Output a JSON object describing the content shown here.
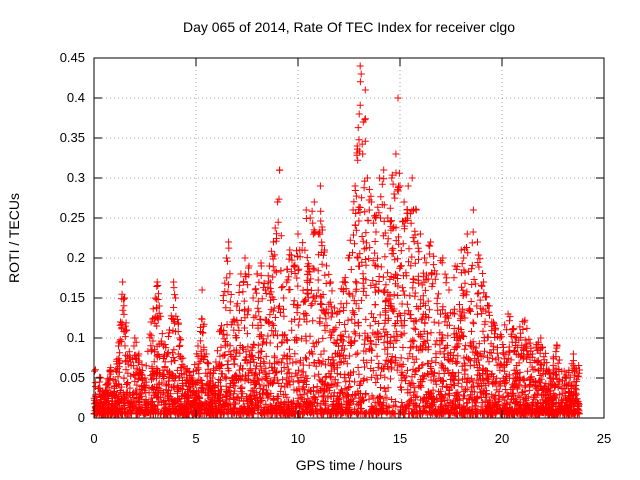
{
  "chart_data": {
    "type": "scatter",
    "title": "Day 065 of 2014, Rate Of TEC Index for receiver clgo",
    "xlabel": "GPS time / hours",
    "ylabel": "ROTI / TECUs",
    "xlim": [
      0,
      25
    ],
    "ylim": [
      0,
      0.45
    ],
    "xticks": [
      0,
      5,
      10,
      15,
      20,
      25
    ],
    "xtick_labels": [
      "0",
      "5",
      "10",
      "15",
      "20",
      "25"
    ],
    "yticks": [
      0,
      0.05,
      0.1,
      0.15,
      0.2,
      0.25,
      0.3,
      0.35,
      0.4,
      0.45
    ],
    "ytick_labels": [
      "0",
      "0.05",
      "0.1",
      "0.15",
      "0.2",
      "0.25",
      "0.3",
      "0.35",
      "0.4",
      "0.45"
    ],
    "grid": true,
    "marker": "+",
    "color": "#ff0000",
    "series": [
      {
        "name": "ROTI",
        "points": [
          [
            0.1,
            0.02
          ],
          [
            0.3,
            0.05
          ],
          [
            0.5,
            0.03
          ],
          [
            0.8,
            0.06
          ],
          [
            1.0,
            0.04
          ],
          [
            1.2,
            0.09
          ],
          [
            1.3,
            0.12
          ],
          [
            1.4,
            0.17
          ],
          [
            1.5,
            0.15
          ],
          [
            1.6,
            0.11
          ],
          [
            1.8,
            0.07
          ],
          [
            2.0,
            0.1
          ],
          [
            2.2,
            0.08
          ],
          [
            2.5,
            0.05
          ],
          [
            2.8,
            0.12
          ],
          [
            3.0,
            0.15
          ],
          [
            3.1,
            0.17
          ],
          [
            3.2,
            0.14
          ],
          [
            3.4,
            0.09
          ],
          [
            3.7,
            0.11
          ],
          [
            3.9,
            0.17
          ],
          [
            4.0,
            0.15
          ],
          [
            4.2,
            0.1
          ],
          [
            4.5,
            0.06
          ],
          [
            4.8,
            0.05
          ],
          [
            5.1,
            0.09
          ],
          [
            5.3,
            0.16
          ],
          [
            5.5,
            0.08
          ],
          [
            5.8,
            0.05
          ],
          [
            6.2,
            0.11
          ],
          [
            6.5,
            0.2
          ],
          [
            6.6,
            0.22
          ],
          [
            6.8,
            0.12
          ],
          [
            7.0,
            0.14
          ],
          [
            7.2,
            0.18
          ],
          [
            7.4,
            0.2
          ],
          [
            7.6,
            0.19
          ],
          [
            7.8,
            0.15
          ],
          [
            8.0,
            0.18
          ],
          [
            8.2,
            0.19
          ],
          [
            8.4,
            0.16
          ],
          [
            8.6,
            0.19
          ],
          [
            8.8,
            0.22
          ],
          [
            9.0,
            0.27
          ],
          [
            9.1,
            0.31
          ],
          [
            9.3,
            0.15
          ],
          [
            9.6,
            0.21
          ],
          [
            9.8,
            0.19
          ],
          [
            10.0,
            0.23
          ],
          [
            10.2,
            0.21
          ],
          [
            10.4,
            0.26
          ],
          [
            10.6,
            0.25
          ],
          [
            10.8,
            0.27
          ],
          [
            11.0,
            0.23
          ],
          [
            11.1,
            0.29
          ],
          [
            11.3,
            0.21
          ],
          [
            11.6,
            0.17
          ],
          [
            11.9,
            0.13
          ],
          [
            12.2,
            0.17
          ],
          [
            12.5,
            0.2
          ],
          [
            12.7,
            0.26
          ],
          [
            12.8,
            0.29
          ],
          [
            12.9,
            0.34
          ],
          [
            13.0,
            0.38
          ],
          [
            13.05,
            0.44
          ],
          [
            13.1,
            0.43
          ],
          [
            13.2,
            0.37
          ],
          [
            13.3,
            0.41
          ],
          [
            13.4,
            0.3
          ],
          [
            13.6,
            0.27
          ],
          [
            13.8,
            0.25
          ],
          [
            14.0,
            0.3
          ],
          [
            14.2,
            0.31
          ],
          [
            14.4,
            0.25
          ],
          [
            14.6,
            0.3
          ],
          [
            14.8,
            0.33
          ],
          [
            14.9,
            0.4
          ],
          [
            15.0,
            0.29
          ],
          [
            15.2,
            0.27
          ],
          [
            15.4,
            0.29
          ],
          [
            15.6,
            0.3
          ],
          [
            15.8,
            0.26
          ],
          [
            16.0,
            0.23
          ],
          [
            16.2,
            0.2
          ],
          [
            16.5,
            0.22
          ],
          [
            16.8,
            0.18
          ],
          [
            17.1,
            0.2
          ],
          [
            17.4,
            0.16
          ],
          [
            17.7,
            0.19
          ],
          [
            18.0,
            0.21
          ],
          [
            18.3,
            0.23
          ],
          [
            18.6,
            0.26
          ],
          [
            18.8,
            0.22
          ],
          [
            19.1,
            0.17
          ],
          [
            19.5,
            0.12
          ],
          [
            19.9,
            0.1
          ],
          [
            20.3,
            0.13
          ],
          [
            20.7,
            0.1
          ],
          [
            21.1,
            0.12
          ],
          [
            21.5,
            0.08
          ],
          [
            21.9,
            0.1
          ],
          [
            22.3,
            0.06
          ],
          [
            22.7,
            0.09
          ],
          [
            23.1,
            0.05
          ],
          [
            23.5,
            0.08
          ],
          [
            23.8,
            0.06
          ]
        ]
      }
    ]
  }
}
